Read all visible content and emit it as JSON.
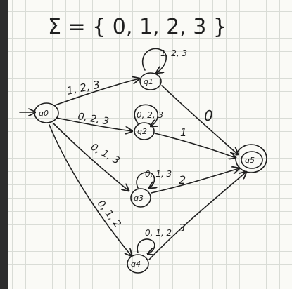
{
  "title": "Σ = { 0, 1, 2, 3 }",
  "states": [
    {
      "id": "q0",
      "label": "q0"
    },
    {
      "id": "q1",
      "label": "q1"
    },
    {
      "id": "q2",
      "label": "q2"
    },
    {
      "id": "q3",
      "label": "q3"
    },
    {
      "id": "q4",
      "label": "q4"
    },
    {
      "id": "q5",
      "label": "q5",
      "accepting": true
    }
  ],
  "edges": [
    {
      "from": "q0",
      "to": "q1",
      "label": "1, 2, 3"
    },
    {
      "from": "q0",
      "to": "q2",
      "label": "0, 2, 3"
    },
    {
      "from": "q0",
      "to": "q3",
      "label": "0, 1, 3"
    },
    {
      "from": "q0",
      "to": "q4",
      "label": "0, 1, 2"
    },
    {
      "from": "q1",
      "to": "q5",
      "label": "0"
    },
    {
      "from": "q2",
      "to": "q5",
      "label": "1"
    },
    {
      "from": "q3",
      "to": "q5",
      "label": "2"
    },
    {
      "from": "q4",
      "to": "q5",
      "label": "3"
    }
  ],
  "self_loops": [
    {
      "state": "q1",
      "label": "1, 2, 3"
    },
    {
      "state": "q2",
      "label": "0, 2, 3"
    },
    {
      "state": "q3",
      "label": "0, 1, 3"
    },
    {
      "state": "q4",
      "label": "0, 1, 2"
    }
  ],
  "ink_color": "#1f1f1f",
  "paper_color": "#fafaf6",
  "grid_color": "#d9dcd6"
}
